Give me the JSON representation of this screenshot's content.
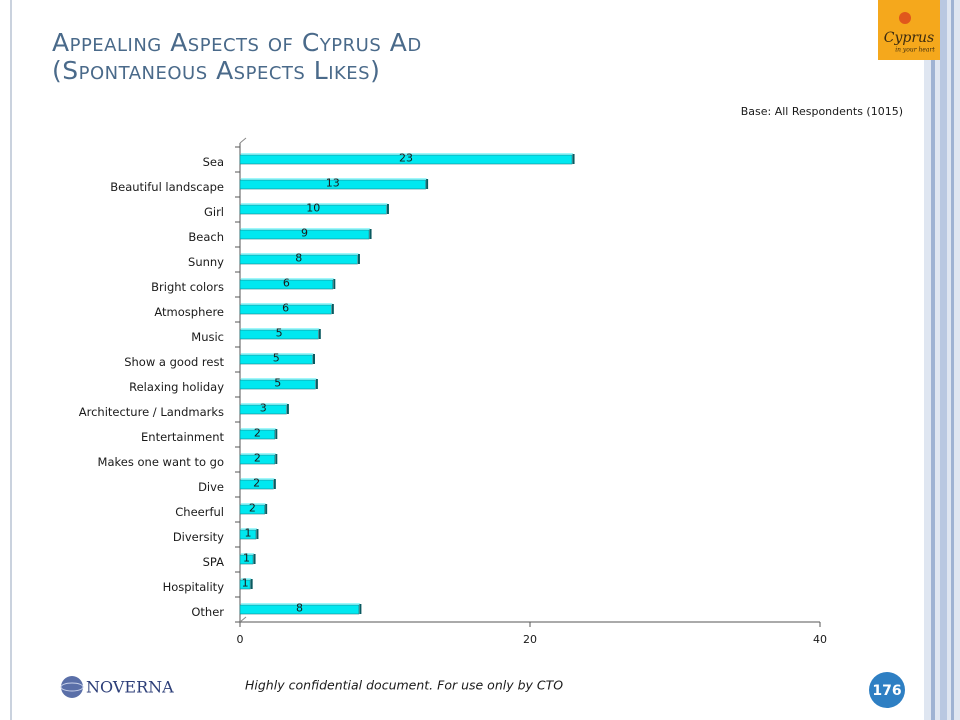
{
  "header": {
    "title": "Appealing Aspects of Cyprus Ad",
    "subtitle": "(Spontaneous Aspects Likes)"
  },
  "note": "Base: All Respondents (1015)",
  "chart_data": {
    "type": "bar",
    "horizontal": true,
    "categories": [
      "Sea",
      "Beautiful landscape",
      "Girl",
      "Beach",
      "Sunny",
      "Bright colors",
      "Atmosphere",
      "Music",
      "Show a good rest",
      "Relaxing holiday",
      "Architecture / Landmarks",
      "Entertainment",
      "Makes one want to go",
      "Dive",
      "Cheerful",
      "Diversity",
      "SPA",
      "Hospitality",
      "Other"
    ],
    "values": [
      22.9,
      12.8,
      10.1,
      8.9,
      8.1,
      6.4,
      6.3,
      5.4,
      5.0,
      5.2,
      3.2,
      2.4,
      2.4,
      2.3,
      1.7,
      1.1,
      0.9,
      0.7,
      8.2
    ],
    "value_labels": [
      "23",
      "13",
      "10",
      "9",
      "8",
      "6",
      "6",
      "5",
      "5",
      "5",
      "3",
      "2",
      "2",
      "2",
      "2",
      "1",
      "1",
      "1",
      "8"
    ],
    "color": "#00e8f0",
    "xlim": [
      0,
      40
    ],
    "xticks": [
      0,
      20,
      40
    ]
  },
  "footer": {
    "text": "Highly confidential document. For use only by CTO",
    "page_number": 176
  },
  "logos": {
    "cyprus": "Cyprus",
    "cyprus_tagline": "in your heart",
    "noverna": "NOVERNA"
  }
}
